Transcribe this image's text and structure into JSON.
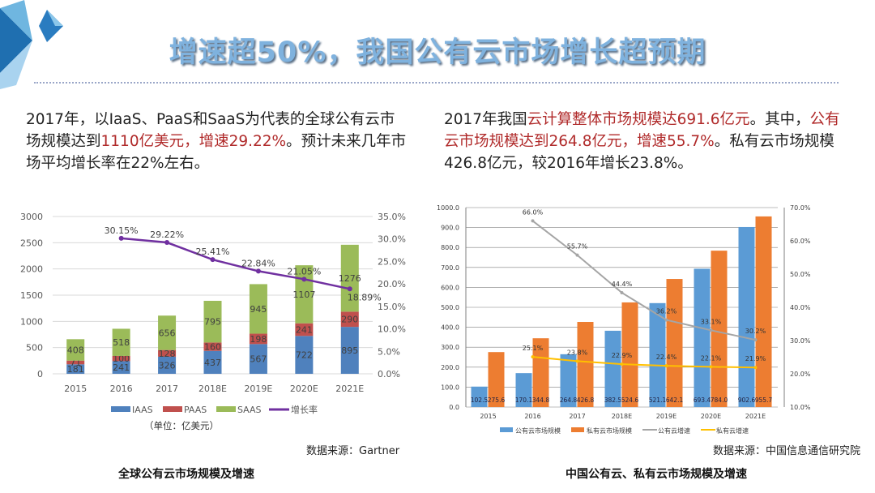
{
  "title": "增速超50%，我国公有云市场增长超预期",
  "left_text": {
    "p1": "2017年，以IaaS、PaaS和SaaS为代表的全球公有云市场规模达到",
    "p2": "1110亿美元，增速29.22%",
    "p3": "。预计未来几年市场平均增长率在22%左右。"
  },
  "right_text": {
    "p1": "2017年我国",
    "p2": "云计算整体市场规模达691.6亿元",
    "p3": "。其中，",
    "p4": "公有云市场规模达到264.8亿元，增速55.7%",
    "p5": "。私有云市场规模426.8亿元，较2016年增长23.8%。"
  },
  "left_source": "数据来源：Gartner",
  "right_source": "数据来源：中国信息通信研究院",
  "left_caption": "全球公有云市场规模及增速",
  "right_caption": "中国公有云、私有云市场规模及增速",
  "colors": {
    "title": "#7fb2de",
    "highlight": "#b02a2a",
    "iaas": "#4f81bd",
    "paas": "#c0504d",
    "saas": "#9bbb59",
    "growth": "#7030a0",
    "public": "#5b9bd5",
    "private": "#ed7d31",
    "public_rate": "#a5a5a5",
    "private_rate": "#ffc000"
  },
  "chart_data": [
    {
      "type": "bar",
      "stacked": true,
      "categories": [
        "2015",
        "2016",
        "2017",
        "2018E",
        "2019E",
        "2020E",
        "2021E"
      ],
      "series": [
        {
          "name": "IAAS",
          "values": [
            181,
            241,
            326,
            437,
            567,
            722,
            895
          ]
        },
        {
          "name": "PAAS",
          "values": [
            71,
            100,
            128,
            160,
            198,
            241,
            290
          ]
        },
        {
          "name": "SAAS",
          "values": [
            408,
            518,
            656,
            795,
            945,
            1107,
            1276
          ]
        }
      ],
      "line_series": {
        "name": "增长率",
        "axis": "right",
        "values": [
          null,
          30.15,
          29.22,
          25.41,
          22.84,
          21.05,
          18.89
        ],
        "labels": [
          "",
          "30.15%",
          "29.22%",
          "25.41%",
          "22.84%",
          "21.05%",
          "18.89%"
        ]
      },
      "ylim": [
        0,
        3000
      ],
      "yticks": [
        "0",
        "500",
        "1000",
        "1500",
        "2000",
        "2500",
        "3000"
      ],
      "y2lim": [
        0,
        35
      ],
      "y2ticks": [
        "0.0%",
        "5.0%",
        "10.0%",
        "15.0%",
        "20.0%",
        "25.0%",
        "30.0%",
        "35.0%"
      ],
      "unit_label": "（单位：亿美元）",
      "grid": true,
      "legend": "bottom"
    },
    {
      "type": "bar",
      "categories": [
        "2015",
        "2016",
        "2017",
        "2018E",
        "2019E",
        "2020E",
        "2021E"
      ],
      "series": [
        {
          "name": "公有云市场规模",
          "values": [
            102.5,
            170.1,
            264.8,
            382.5,
            521.1,
            693.4,
            902.6
          ],
          "labels": [
            "102.5",
            "170.1",
            "264.8",
            "382.5",
            "521.1",
            "693.4",
            "902.6"
          ]
        },
        {
          "name": "私有云市场规模",
          "values": [
            275.6,
            344.8,
            426.8,
            524.6,
            642.1,
            784.0,
            955.7
          ],
          "labels": [
            "275.6",
            "344.8",
            "426.8",
            "524.6",
            "642.1",
            "784.0",
            "955.7"
          ]
        }
      ],
      "line_series": [
        {
          "name": "公有云增速",
          "axis": "right",
          "values": [
            null,
            66.0,
            55.7,
            44.4,
            36.2,
            33.1,
            30.2
          ],
          "labels": [
            "",
            "66.0%",
            "55.7%",
            "44.4%",
            "36.2%",
            "33.1%",
            "30.2%"
          ]
        },
        {
          "name": "私有云增速",
          "axis": "right",
          "values": [
            null,
            25.1,
            23.8,
            22.9,
            22.4,
            22.1,
            21.9
          ],
          "labels": [
            "",
            "25.1%",
            "23.8%",
            "22.9%",
            "22.4%",
            "22.1%",
            "21.9%"
          ]
        }
      ],
      "ylim": [
        0,
        1000
      ],
      "yticks": [
        "0.0",
        "100.0",
        "200.0",
        "300.0",
        "400.0",
        "500.0",
        "600.0",
        "700.0",
        "800.0",
        "900.0",
        "1000.0"
      ],
      "y2lim": [
        10,
        70
      ],
      "y2ticks": [
        "10.0%",
        "20.0%",
        "30.0%",
        "40.0%",
        "50.0%",
        "60.0%",
        "70.0%"
      ],
      "grid": true,
      "legend": "bottom"
    }
  ]
}
